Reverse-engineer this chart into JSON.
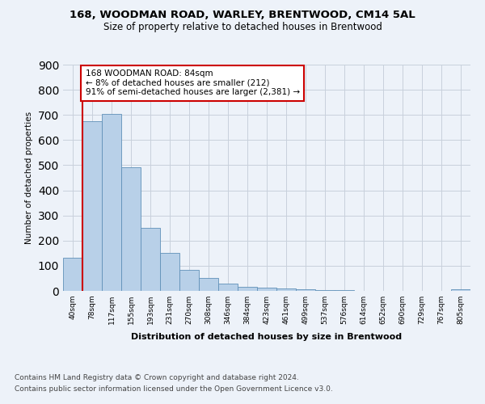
{
  "title_line1": "168, WOODMAN ROAD, WARLEY, BRENTWOOD, CM14 5AL",
  "title_line2": "Size of property relative to detached houses in Brentwood",
  "xlabel": "Distribution of detached houses by size in Brentwood",
  "ylabel": "Number of detached properties",
  "bin_labels": [
    "40sqm",
    "78sqm",
    "117sqm",
    "155sqm",
    "193sqm",
    "231sqm",
    "270sqm",
    "308sqm",
    "346sqm",
    "384sqm",
    "423sqm",
    "461sqm",
    "499sqm",
    "537sqm",
    "576sqm",
    "614sqm",
    "652sqm",
    "690sqm",
    "729sqm",
    "767sqm",
    "805sqm"
  ],
  "bar_heights": [
    133,
    675,
    705,
    492,
    252,
    150,
    85,
    50,
    28,
    17,
    12,
    10,
    5,
    3,
    2,
    1,
    1,
    0,
    0,
    0,
    5
  ],
  "bar_color": "#b8d0e8",
  "bar_edge_color": "#6090b8",
  "annotation_text": "168 WOODMAN ROAD: 84sqm\n← 8% of detached houses are smaller (212)\n91% of semi-detached houses are larger (2,381) →",
  "annotation_box_color": "#ffffff",
  "annotation_box_edge": "#cc0000",
  "red_line_color": "#cc0000",
  "ylim": [
    0,
    900
  ],
  "yticks": [
    0,
    100,
    200,
    300,
    400,
    500,
    600,
    700,
    800,
    900
  ],
  "footer_line1": "Contains HM Land Registry data © Crown copyright and database right 2024.",
  "footer_line2": "Contains public sector information licensed under the Open Government Licence v3.0.",
  "bg_color": "#edf2f9",
  "plot_bg_color": "#edf2f9",
  "grid_color": "#c8d0dc"
}
